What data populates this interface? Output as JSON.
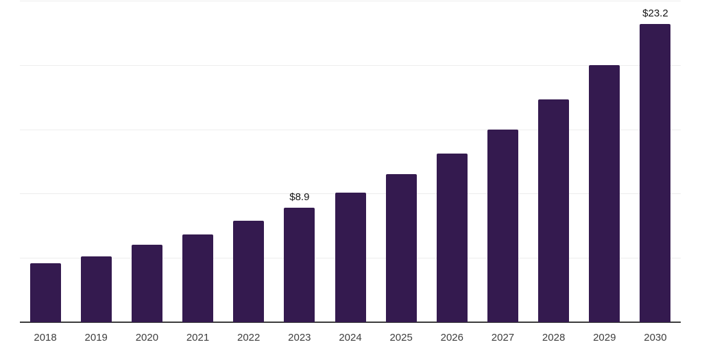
{
  "chart_data": {
    "type": "bar",
    "title": "",
    "xlabel": "",
    "ylabel": "",
    "categories": [
      "2018",
      "2019",
      "2020",
      "2021",
      "2022",
      "2023",
      "2024",
      "2025",
      "2026",
      "2027",
      "2028",
      "2029",
      "2030"
    ],
    "values": [
      4.6,
      5.1,
      6.0,
      6.8,
      7.9,
      8.9,
      10.1,
      11.5,
      13.1,
      15.0,
      17.3,
      20.0,
      23.2
    ],
    "data_labels": [
      "",
      "",
      "",
      "",
      "",
      "$8.9",
      "",
      "",
      "",
      "",
      "",
      "",
      "$23.2"
    ],
    "ylim": [
      0,
      25
    ],
    "grid_step": 5,
    "grid": true,
    "legend_position": "none",
    "y_axis_tick_labels_visible": false
  },
  "style": {
    "bar_color": "#341A4F",
    "gridline_color": "#EDEDED",
    "axis_line_color": "#3C3C3C",
    "tick_label_color": "#3D3D3D",
    "data_label_color": "#141414",
    "background_color": "#FFFFFF"
  }
}
